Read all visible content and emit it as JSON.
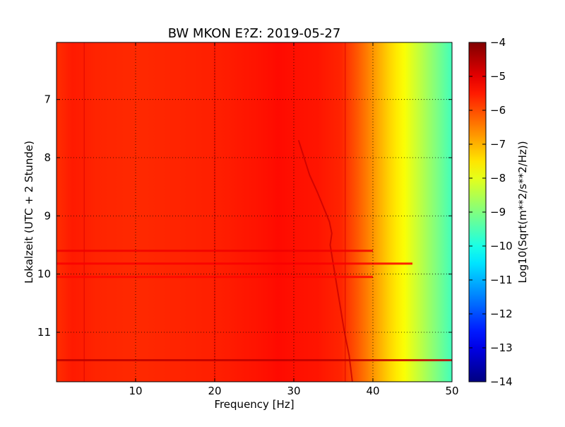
{
  "chart_data": {
    "type": "heatmap",
    "title": "BW MKON E?Z: 2019-05-27",
    "xlabel": "Frequency [Hz]",
    "ylabel": "Lokalzeit (UTC + 2 Stunde)",
    "xlim": [
      0,
      50
    ],
    "ylim": [
      11.85,
      6.02
    ],
    "y_axis_inverted": true,
    "x_ticks": [
      {
        "value": 10,
        "label": "10"
      },
      {
        "value": 20,
        "label": "20"
      },
      {
        "value": 30,
        "label": "30"
      },
      {
        "value": 40,
        "label": "40"
      },
      {
        "value": 50,
        "label": "50"
      }
    ],
    "y_ticks": [
      {
        "value": 7,
        "label": "7"
      },
      {
        "value": 8,
        "label": "8"
      },
      {
        "value": 9,
        "label": "9"
      },
      {
        "value": 10,
        "label": "10"
      },
      {
        "value": 11,
        "label": "11"
      }
    ],
    "grid": true,
    "grid_style": "dotted",
    "colorbar": {
      "label": "Log10(Sqrt(m**2/s**2/Hz))",
      "colormap": "jet",
      "range": [
        -14,
        -4
      ],
      "ticks": [
        {
          "value": -4,
          "label": "−4"
        },
        {
          "value": -5,
          "label": "−5"
        },
        {
          "value": -6,
          "label": "−6"
        },
        {
          "value": -7,
          "label": "−7"
        },
        {
          "value": -8,
          "label": "−8"
        },
        {
          "value": -9,
          "label": "−9"
        },
        {
          "value": -10,
          "label": "−10"
        },
        {
          "value": -11,
          "label": "−11"
        },
        {
          "value": -12,
          "label": "−12"
        },
        {
          "value": -13,
          "label": "−13"
        },
        {
          "value": -14,
          "label": "−14"
        }
      ]
    },
    "spectral_profile": {
      "frequency_hz": [
        0,
        2,
        5,
        10,
        15,
        20,
        25,
        28,
        30,
        33,
        36,
        38,
        40,
        42,
        44,
        46,
        48,
        50
      ],
      "level": [
        -5.7,
        -5.5,
        -5.6,
        -5.65,
        -5.6,
        -5.55,
        -5.45,
        -5.35,
        -5.4,
        -5.45,
        -5.6,
        -6.1,
        -6.7,
        -7.3,
        -7.8,
        -8.4,
        -9.0,
        -9.6
      ]
    },
    "features": [
      {
        "type": "vertical_line",
        "frequency_hz": 3.5,
        "level": -4.9
      },
      {
        "type": "vertical_line",
        "frequency_hz": 20.0,
        "level": -4.9
      },
      {
        "type": "vertical_line",
        "frequency_hz": 36.5,
        "level": -4.9
      },
      {
        "type": "drift_line",
        "level": -4.7,
        "points": [
          {
            "frequency_hz": 30.6,
            "time": 7.7
          },
          {
            "frequency_hz": 32.0,
            "time": 8.3
          },
          {
            "frequency_hz": 33.0,
            "time": 8.6
          },
          {
            "frequency_hz": 34.5,
            "time": 9.1
          },
          {
            "frequency_hz": 34.8,
            "time": 9.3
          },
          {
            "frequency_hz": 34.6,
            "time": 9.5
          },
          {
            "frequency_hz": 35.2,
            "time": 10.0
          },
          {
            "frequency_hz": 35.8,
            "time": 10.5
          },
          {
            "frequency_hz": 36.4,
            "time": 11.0
          },
          {
            "frequency_hz": 37.0,
            "time": 11.4
          },
          {
            "frequency_hz": 37.4,
            "time": 11.85
          }
        ]
      },
      {
        "type": "horizontal_band",
        "time": 11.48,
        "level": -4.6,
        "to_hz": 50
      },
      {
        "type": "horizontal_band",
        "time": 9.6,
        "level": -5.1,
        "to_hz": 40
      },
      {
        "type": "horizontal_band",
        "time": 9.82,
        "level": -5.2,
        "to_hz": 45
      },
      {
        "type": "horizontal_band",
        "time": 10.05,
        "level": -5.3,
        "to_hz": 40
      }
    ]
  }
}
